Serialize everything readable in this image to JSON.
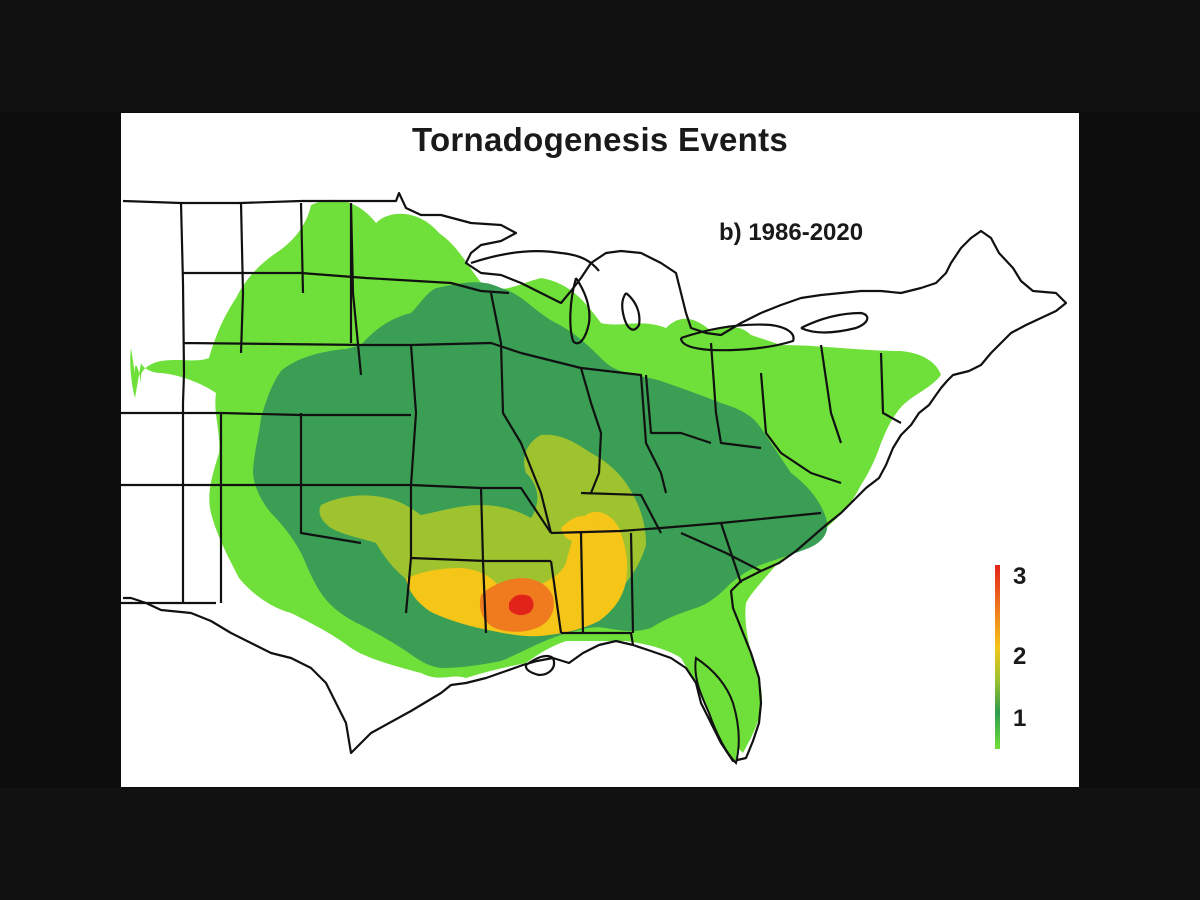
{
  "title": "Tornadogenesis Events",
  "subtitle": "b) 1986-2020",
  "legend": {
    "labels": [
      "3",
      "2",
      "1"
    ],
    "colors": [
      "#e2231a",
      "#f07a1e",
      "#f5c518",
      "#9ec32e",
      "#2f9a4e",
      "#6fe03a"
    ]
  },
  "map": {
    "region": "Contiguous United States",
    "palette": {
      "level_0": "#ffffff",
      "level_1_low": "#6fe03a",
      "level_1": "#3a9e55",
      "level_1_5": "#9ec32e",
      "level_2": "#f5c518",
      "level_2_5": "#f07a1e",
      "level_3": "#e2231a",
      "borders": "#111111"
    }
  }
}
